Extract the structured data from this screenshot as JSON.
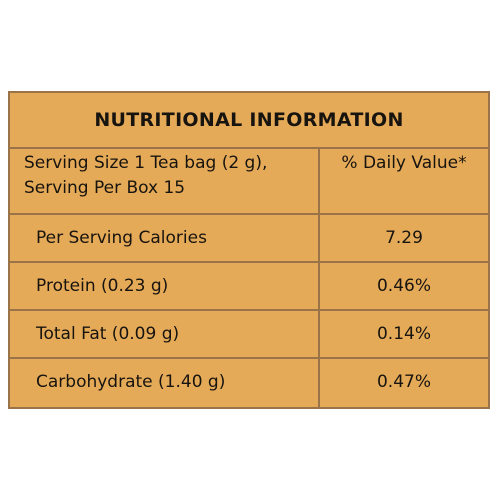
{
  "panel": {
    "title": "NUTRITIONAL INFORMATION",
    "header": {
      "serving_size": "Serving Size 1 Tea bag (2 g),",
      "serving_per_box": "Serving Per Box 15",
      "daily_value_label": "% Daily Value*"
    },
    "rows": [
      {
        "label": "Per Serving Calories",
        "value": "7.29"
      },
      {
        "label": "Protein (0.23 g)",
        "value": "0.46%"
      },
      {
        "label": "Total Fat (0.09 g)",
        "value": "0.14%"
      },
      {
        "label": "Carbohydrate (1.40 g)",
        "value": "0.47%"
      }
    ],
    "colors": {
      "background": "#e5aa58",
      "border": "#9a7448",
      "text": "#17140f"
    }
  }
}
